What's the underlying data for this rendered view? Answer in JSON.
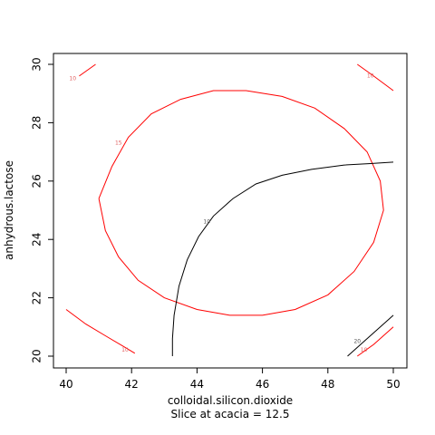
{
  "chart_data": {
    "type": "contour",
    "xlabel": "colloidal.silicon.dioxide",
    "ylabel": "anhydrous.lactose",
    "subtitle": "Slice at acacia = 12.5",
    "xlim": [
      40,
      50
    ],
    "ylim": [
      20,
      30
    ],
    "x_ticks": [
      "40",
      "42",
      "44",
      "46",
      "48",
      "50"
    ],
    "y_ticks": [
      "20",
      "22",
      "24",
      "26",
      "28",
      "30"
    ],
    "series": [
      {
        "label": "15",
        "color": "#ff0000",
        "label_at": [
          41.6,
          27.3
        ],
        "points": [
          [
            41.0,
            25.4
          ],
          [
            41.2,
            24.3
          ],
          [
            41.6,
            23.4
          ],
          [
            42.2,
            22.6
          ],
          [
            43.0,
            22.0
          ],
          [
            44.0,
            21.6
          ],
          [
            45.0,
            21.4
          ],
          [
            46.0,
            21.4
          ],
          [
            47.0,
            21.6
          ],
          [
            48.0,
            22.1
          ],
          [
            48.8,
            22.9
          ],
          [
            49.4,
            23.9
          ],
          [
            49.7,
            25.0
          ],
          [
            49.6,
            26.0
          ],
          [
            49.2,
            27.0
          ],
          [
            48.5,
            27.8
          ],
          [
            47.6,
            28.5
          ],
          [
            46.6,
            28.9
          ],
          [
            45.5,
            29.1
          ],
          [
            44.5,
            29.1
          ],
          [
            43.5,
            28.8
          ],
          [
            42.6,
            28.3
          ],
          [
            41.9,
            27.5
          ],
          [
            41.4,
            26.5
          ],
          [
            41.0,
            25.4
          ]
        ]
      },
      {
        "label": "10",
        "color": "#ff0000",
        "label_at": [
          40.2,
          29.5
        ],
        "points": [
          [
            40.4,
            29.6
          ],
          [
            40.9,
            30.0
          ]
        ]
      },
      {
        "label": "10",
        "color": "#ff0000",
        "label_at": [
          49.3,
          29.6
        ],
        "points": [
          [
            48.9,
            30.0
          ],
          [
            49.4,
            29.6
          ],
          [
            50.0,
            29.1
          ]
        ]
      },
      {
        "label": "10",
        "color": "#ff0000",
        "label_at": [
          41.8,
          20.2
        ],
        "points": [
          [
            40.0,
            21.6
          ],
          [
            40.6,
            21.1
          ],
          [
            41.2,
            20.7
          ],
          [
            41.8,
            20.3
          ],
          [
            42.1,
            20.1
          ]
        ]
      },
      {
        "label": "10",
        "color": "#ff0000",
        "label_at": [
          49.1,
          20.2
        ],
        "points": [
          [
            48.9,
            20.0
          ],
          [
            49.4,
            20.4
          ],
          [
            50.0,
            21.0
          ]
        ]
      },
      {
        "label": "10",
        "color": "#000000",
        "label_at": [
          44.3,
          24.6
        ],
        "points": [
          [
            43.25,
            20.0
          ],
          [
            43.25,
            20.6
          ],
          [
            43.3,
            21.4
          ],
          [
            43.45,
            22.4
          ],
          [
            43.7,
            23.3
          ],
          [
            44.05,
            24.1
          ],
          [
            44.5,
            24.8
          ],
          [
            45.1,
            25.4
          ],
          [
            45.8,
            25.9
          ],
          [
            46.6,
            26.2
          ],
          [
            47.5,
            26.4
          ],
          [
            48.5,
            26.55
          ],
          [
            49.3,
            26.6
          ],
          [
            50.0,
            26.65
          ]
        ]
      },
      {
        "label": "20",
        "color": "#000000",
        "label_at": [
          48.9,
          20.5
        ],
        "points": [
          [
            48.6,
            20.0
          ],
          [
            49.1,
            20.5
          ],
          [
            49.6,
            21.0
          ],
          [
            50.0,
            21.4
          ]
        ]
      }
    ]
  }
}
